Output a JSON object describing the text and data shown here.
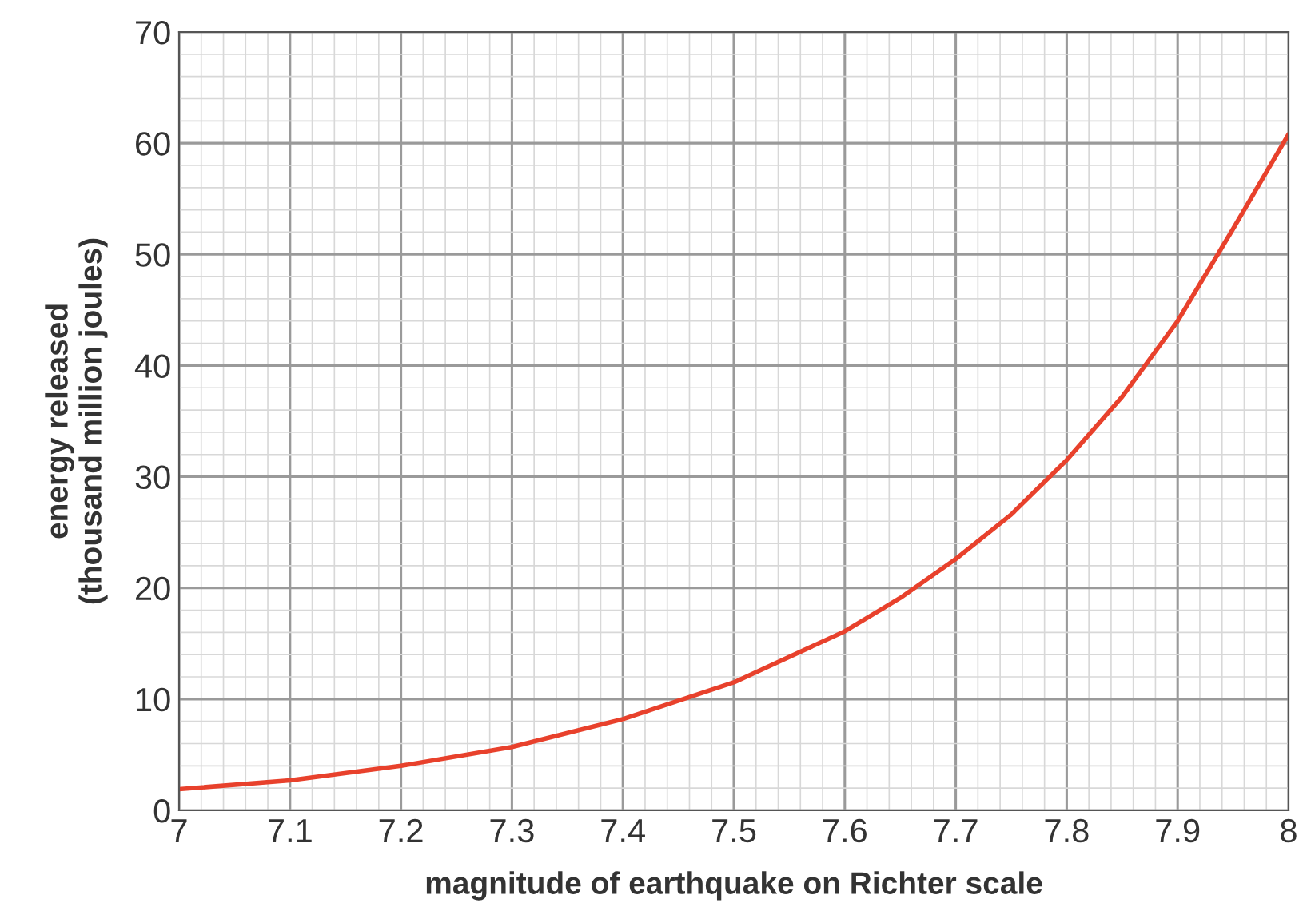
{
  "chart_data": {
    "type": "line",
    "xlabel": "magnitude of earthquake on Richter scale",
    "ylabel": "energy released\n(thousand million joules)",
    "x": [
      7,
      7.1,
      7.2,
      7.3,
      7.4,
      7.5,
      7.6,
      7.65,
      7.7,
      7.75,
      7.8,
      7.85,
      7.9,
      7.95,
      8
    ],
    "series": [
      {
        "color": "#e8412c",
        "values": [
          1.9,
          2.7,
          4.0,
          5.7,
          8.2,
          11.5,
          16.1,
          19.1,
          22.6,
          26.6,
          31.5,
          37.2,
          44,
          52.3,
          60.8
        ]
      }
    ],
    "xlim": [
      7,
      8
    ],
    "xticks": [
      7,
      7.1,
      7.2,
      7.3,
      7.4,
      7.5,
      7.6,
      7.7,
      7.8,
      7.9,
      8
    ],
    "ylim": [
      0,
      70
    ],
    "yticks": [
      0,
      10,
      20,
      30,
      40,
      50,
      60,
      70
    ],
    "grid": true,
    "marker": "none",
    "line_style": "solid"
  }
}
